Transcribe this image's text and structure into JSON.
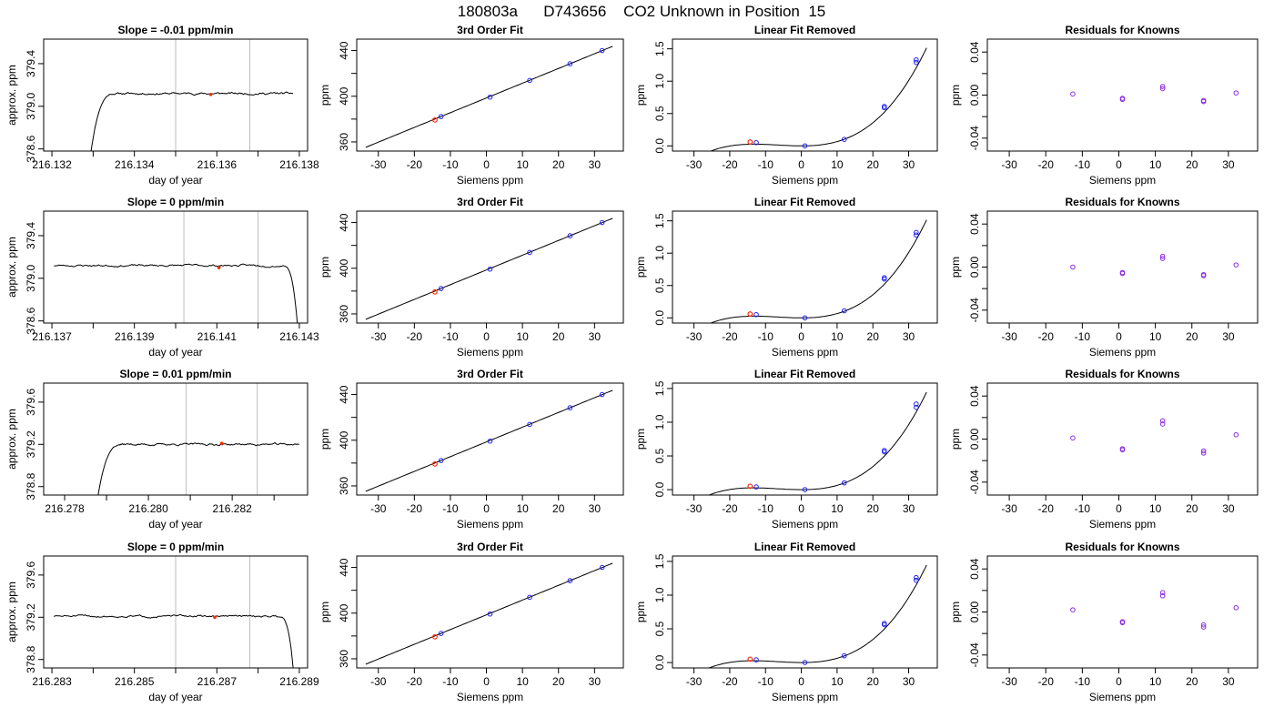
{
  "title": "180803a      D743656    CO2 Unknown in Position  15",
  "colors": {
    "unknown_point": "#ff2a00",
    "known_point": "#1f1fff",
    "residual_point": "#8a2be2",
    "fit_line": "#000000",
    "frame": "#000000",
    "guide_line": "#bdbdbd"
  },
  "chart_data": [
    {
      "type": "line",
      "row": 0,
      "col": 0,
      "title": "Slope =  -0.01  ppm/min",
      "xlabel": "day of year",
      "ylabel": "approx. ppm",
      "xlim": [
        216.1318,
        216.1382
      ],
      "ylim": [
        378.58,
        379.63
      ],
      "xticks": [
        216.132,
        216.133,
        216.134,
        216.135,
        216.136,
        216.137,
        216.138
      ],
      "xtick_labels": [
        "216.132",
        "",
        "216.134",
        "",
        "216.136",
        "",
        "216.138"
      ],
      "yticks": [
        378.6,
        379.0,
        379.4
      ],
      "ytick_labels": [
        "378.6",
        "379.0",
        "379.4"
      ],
      "x_decimals": 3,
      "guides": [
        216.135,
        216.1368
      ],
      "marker": {
        "x": 216.13585,
        "y": 379.11
      },
      "trace": {
        "x_start": 216.13295,
        "x_end": 216.13785,
        "shape": "rise",
        "level": 379.12,
        "start": 378.58,
        "rise_width": 0.0006,
        "noise": 0.012,
        "seed": 11
      }
    },
    {
      "type": "line",
      "row": 1,
      "col": 0,
      "title": "Slope =  0  ppm/min",
      "xlabel": "day of year",
      "ylabel": "approx. ppm",
      "xlim": [
        216.1368,
        216.1432
      ],
      "ylim": [
        378.58,
        379.63
      ],
      "xticks": [
        216.137,
        216.138,
        216.139,
        216.14,
        216.141,
        216.142,
        216.143
      ],
      "xtick_labels": [
        "216.137",
        "",
        "216.139",
        "",
        "216.141",
        "",
        "216.143"
      ],
      "yticks": [
        378.6,
        379.0,
        379.4
      ],
      "ytick_labels": [
        "378.6",
        "379.0",
        "379.4"
      ],
      "x_decimals": 3,
      "guides": [
        216.1402,
        216.142
      ],
      "marker": {
        "x": 216.14105,
        "y": 379.1
      },
      "trace": {
        "x_start": 216.13705,
        "x_end": 216.14295,
        "shape": "drop",
        "level": 379.12,
        "end": 378.58,
        "drop_width": 0.00035,
        "noise": 0.012,
        "seed": 23
      }
    },
    {
      "type": "line",
      "row": 2,
      "col": 0,
      "title": "Slope =  0.01  ppm/min",
      "xlabel": "day of year",
      "ylabel": "approx. ppm",
      "xlim": [
        216.2775,
        216.2838
      ],
      "ylim": [
        378.72,
        379.78
      ],
      "xticks": [
        216.278,
        216.279,
        216.28,
        216.281,
        216.282,
        216.283
      ],
      "xtick_labels": [
        "216.278",
        "",
        "216.280",
        "",
        "216.282",
        ""
      ],
      "yticks": [
        378.8,
        379.2,
        379.6
      ],
      "ytick_labels": [
        "378.8",
        "379.2",
        "379.6"
      ],
      "x_decimals": 3,
      "guides": [
        216.2809,
        216.2826
      ],
      "marker": {
        "x": 216.28175,
        "y": 379.21
      },
      "trace": {
        "x_start": 216.2788,
        "x_end": 216.2836,
        "shape": "rise",
        "level": 379.2,
        "start": 378.72,
        "rise_width": 0.0006,
        "noise": 0.012,
        "seed": 37
      }
    },
    {
      "type": "line",
      "row": 3,
      "col": 0,
      "title": "Slope =  0  ppm/min",
      "xlabel": "day of year",
      "ylabel": "approx. ppm",
      "xlim": [
        216.2828,
        216.2892
      ],
      "ylim": [
        378.72,
        379.78
      ],
      "xticks": [
        216.283,
        216.284,
        216.285,
        216.286,
        216.287,
        216.288,
        216.289
      ],
      "xtick_labels": [
        "216.283",
        "",
        "216.285",
        "",
        "216.287",
        "",
        "216.289"
      ],
      "yticks": [
        378.8,
        379.2,
        379.6
      ],
      "ytick_labels": [
        "378.8",
        "379.2",
        "379.6"
      ],
      "x_decimals": 3,
      "guides": [
        216.286,
        216.2878
      ],
      "marker": {
        "x": 216.28695,
        "y": 379.2
      },
      "trace": {
        "x_start": 216.28305,
        "x_end": 216.28885,
        "shape": "drop",
        "level": 379.21,
        "end": 378.72,
        "drop_width": 0.00035,
        "noise": 0.012,
        "seed": 51
      }
    },
    {
      "type": "scatter",
      "row": 0,
      "col": 1,
      "title": "3rd Order Fit",
      "xlabel": "Siemens ppm",
      "ylabel": "ppm",
      "xlim": [
        -36,
        38
      ],
      "ylim": [
        352,
        450
      ],
      "xticks": [
        -30,
        -20,
        -10,
        0,
        10,
        20,
        30
      ],
      "xtick_labels": [
        "-30",
        "-20",
        "-10",
        "0",
        "10",
        "20",
        "30"
      ],
      "yticks": [
        360,
        380,
        400,
        420,
        440
      ],
      "ytick_labels": [
        "360",
        "",
        "400",
        "",
        "440"
      ],
      "fit": {
        "kind": "linear",
        "a": 398.5,
        "b": 1.29,
        "x_range": [
          -33.5,
          35
        ]
      },
      "known": [
        [
          -12.6,
          382.2
        ],
        [
          1.0,
          399.2
        ],
        [
          12.0,
          413.8
        ],
        [
          23.2,
          428.4
        ],
        [
          32.1,
          440.0
        ]
      ],
      "unknown": [
        [
          -14.3,
          379.2
        ]
      ]
    },
    {
      "type": "scatter",
      "row": 1,
      "col": 1,
      "title": "3rd Order Fit",
      "xlabel": "Siemens ppm",
      "ylabel": "ppm",
      "xlim": [
        -36,
        38
      ],
      "ylim": [
        352,
        450
      ],
      "xticks": [
        -30,
        -20,
        -10,
        0,
        10,
        20,
        30
      ],
      "xtick_labels": [
        "-30",
        "-20",
        "-10",
        "0",
        "10",
        "20",
        "30"
      ],
      "yticks": [
        360,
        380,
        400,
        420,
        440
      ],
      "ytick_labels": [
        "360",
        "",
        "400",
        "",
        "440"
      ],
      "fit": {
        "kind": "linear",
        "a": 398.5,
        "b": 1.29,
        "x_range": [
          -33.5,
          35
        ]
      },
      "known": [
        [
          -12.6,
          382.2
        ],
        [
          1.0,
          399.2
        ],
        [
          12.0,
          413.8
        ],
        [
          23.2,
          428.4
        ],
        [
          32.1,
          440.0
        ]
      ],
      "unknown": [
        [
          -14.3,
          379.2
        ]
      ]
    },
    {
      "type": "scatter",
      "row": 2,
      "col": 1,
      "title": "3rd Order Fit",
      "xlabel": "Siemens ppm",
      "ylabel": "ppm",
      "xlim": [
        -36,
        38
      ],
      "ylim": [
        352,
        450
      ],
      "xticks": [
        -30,
        -20,
        -10,
        0,
        10,
        20,
        30
      ],
      "xtick_labels": [
        "-30",
        "-20",
        "-10",
        "0",
        "10",
        "20",
        "30"
      ],
      "yticks": [
        360,
        380,
        400,
        420,
        440
      ],
      "ytick_labels": [
        "360",
        "",
        "400",
        "",
        "440"
      ],
      "fit": {
        "kind": "linear",
        "a": 398.5,
        "b": 1.29,
        "x_range": [
          -33.5,
          35
        ]
      },
      "known": [
        [
          -12.6,
          382.2
        ],
        [
          1.0,
          399.2
        ],
        [
          12.0,
          413.8
        ],
        [
          23.2,
          428.4
        ],
        [
          32.1,
          440.0
        ]
      ],
      "unknown": [
        [
          -14.3,
          379.2
        ]
      ]
    },
    {
      "type": "scatter",
      "row": 3,
      "col": 1,
      "title": "3rd Order Fit",
      "xlabel": "Siemens ppm",
      "ylabel": "ppm",
      "xlim": [
        -36,
        38
      ],
      "ylim": [
        352,
        450
      ],
      "xticks": [
        -30,
        -20,
        -10,
        0,
        10,
        20,
        30
      ],
      "xtick_labels": [
        "-30",
        "-20",
        "-10",
        "0",
        "10",
        "20",
        "30"
      ],
      "yticks": [
        360,
        380,
        400,
        420,
        440
      ],
      "ytick_labels": [
        "360",
        "",
        "400",
        "",
        "440"
      ],
      "fit": {
        "kind": "linear",
        "a": 398.5,
        "b": 1.29,
        "x_range": [
          -33.5,
          35
        ]
      },
      "known": [
        [
          -12.6,
          382.2
        ],
        [
          1.0,
          399.2
        ],
        [
          12.0,
          413.8
        ],
        [
          23.2,
          428.4
        ],
        [
          32.1,
          440.0
        ]
      ],
      "unknown": [
        [
          -14.3,
          379.2
        ]
      ]
    },
    {
      "type": "scatter",
      "row": 0,
      "col": 2,
      "title": "Linear Fit Removed",
      "xlabel": "Siemens ppm",
      "ylabel": "ppm",
      "xlim": [
        -36,
        38
      ],
      "ylim": [
        -0.08,
        1.65
      ],
      "xticks": [
        -30,
        -20,
        -10,
        0,
        10,
        20,
        30
      ],
      "xtick_labels": [
        "-30",
        "-20",
        "-10",
        "0",
        "10",
        "20",
        "30"
      ],
      "yticks": [
        0,
        0.5,
        1.0,
        1.5
      ],
      "ytick_labels": [
        "0.0",
        "0.5",
        "1.0",
        "1.5"
      ],
      "fit": {
        "kind": "cubic",
        "x_range": [
          -33.5,
          35
        ],
        "c": [
          0,
          -0.0001,
          0.000445,
          2.27e-05
        ]
      },
      "known": [
        [
          -12.6,
          0.05
        ],
        [
          1.0,
          0.0
        ],
        [
          12.0,
          0.1
        ],
        [
          23.2,
          0.59
        ],
        [
          23.2,
          0.61
        ],
        [
          32.1,
          1.29
        ],
        [
          32.1,
          1.33
        ]
      ],
      "unknown": [
        [
          -14.3,
          0.06
        ]
      ]
    },
    {
      "type": "scatter",
      "row": 1,
      "col": 2,
      "title": "Linear Fit Removed",
      "xlabel": "Siemens ppm",
      "ylabel": "ppm",
      "xlim": [
        -36,
        38
      ],
      "ylim": [
        -0.08,
        1.65
      ],
      "xticks": [
        -30,
        -20,
        -10,
        0,
        10,
        20,
        30
      ],
      "xtick_labels": [
        "-30",
        "-20",
        "-10",
        "0",
        "10",
        "20",
        "30"
      ],
      "yticks": [
        0,
        0.5,
        1.0,
        1.5
      ],
      "ytick_labels": [
        "0.0",
        "0.5",
        "1.0",
        "1.5"
      ],
      "fit": {
        "kind": "cubic",
        "x_range": [
          -33.5,
          35
        ],
        "c": [
          0,
          -0.0001,
          0.000445,
          2.27e-05
        ]
      },
      "known": [
        [
          -12.6,
          0.05
        ],
        [
          1.0,
          0.0
        ],
        [
          12.0,
          0.11
        ],
        [
          23.2,
          0.6
        ],
        [
          23.2,
          0.62
        ],
        [
          32.1,
          1.28
        ],
        [
          32.1,
          1.32
        ]
      ],
      "unknown": [
        [
          -14.3,
          0.06
        ]
      ]
    },
    {
      "type": "scatter",
      "row": 2,
      "col": 2,
      "title": "Linear Fit Removed",
      "xlabel": "Siemens ppm",
      "ylabel": "ppm",
      "xlim": [
        -36,
        38
      ],
      "ylim": [
        -0.08,
        1.58
      ],
      "xticks": [
        -30,
        -20,
        -10,
        0,
        10,
        20,
        30
      ],
      "xtick_labels": [
        "-30",
        "-20",
        "-10",
        "0",
        "10",
        "20",
        "30"
      ],
      "yticks": [
        0,
        0.5,
        1.0,
        1.5
      ],
      "ytick_labels": [
        "0.0",
        "0.5",
        "1.0",
        "1.5"
      ],
      "fit": {
        "kind": "cubic",
        "x_range": [
          -33.5,
          35
        ],
        "c": [
          0,
          -0.0001,
          0.00043,
          2.15e-05
        ]
      },
      "known": [
        [
          -12.6,
          0.04
        ],
        [
          1.0,
          0.0
        ],
        [
          12.0,
          0.1
        ],
        [
          23.2,
          0.56
        ],
        [
          23.2,
          0.58
        ],
        [
          32.1,
          1.22
        ],
        [
          32.1,
          1.27
        ]
      ],
      "unknown": [
        [
          -14.3,
          0.05
        ]
      ]
    },
    {
      "type": "scatter",
      "row": 3,
      "col": 2,
      "title": "Linear Fit Removed",
      "xlabel": "Siemens ppm",
      "ylabel": "ppm",
      "xlim": [
        -36,
        38
      ],
      "ylim": [
        -0.08,
        1.58
      ],
      "xticks": [
        -30,
        -20,
        -10,
        0,
        10,
        20,
        30
      ],
      "xtick_labels": [
        "-30",
        "-20",
        "-10",
        "0",
        "10",
        "20",
        "30"
      ],
      "yticks": [
        0,
        0.5,
        1.0,
        1.5
      ],
      "ytick_labels": [
        "0.0",
        "0.5",
        "1.0",
        "1.5"
      ],
      "fit": {
        "kind": "cubic",
        "x_range": [
          -33.5,
          35
        ],
        "c": [
          0,
          -0.0001,
          0.00043,
          2.15e-05
        ]
      },
      "known": [
        [
          -12.6,
          0.04
        ],
        [
          1.0,
          0.0
        ],
        [
          12.0,
          0.1
        ],
        [
          23.2,
          0.56
        ],
        [
          23.2,
          0.58
        ],
        [
          32.1,
          1.22
        ],
        [
          32.1,
          1.26
        ]
      ],
      "unknown": [
        [
          -14.3,
          0.05
        ]
      ]
    },
    {
      "type": "scatter",
      "row": 0,
      "col": 3,
      "title": "Residuals for Knowns",
      "xlabel": "Siemens ppm",
      "ylabel": "ppm",
      "xlim": [
        -36,
        38
      ],
      "ylim": [
        -0.052,
        0.052
      ],
      "xticks": [
        -30,
        -20,
        -10,
        0,
        10,
        20,
        30
      ],
      "xtick_labels": [
        "-30",
        "-20",
        "-10",
        "0",
        "10",
        "20",
        "30"
      ],
      "yticks": [
        -0.04,
        -0.02,
        0,
        0.02,
        0.04
      ],
      "ytick_labels": [
        "-0.04",
        "",
        "0.00",
        "",
        "0.04"
      ],
      "residuals": [
        [
          -12.6,
          0.001
        ],
        [
          1.0,
          -0.003
        ],
        [
          1.0,
          -0.004
        ],
        [
          12.0,
          0.008
        ],
        [
          12.0,
          0.006
        ],
        [
          23.2,
          -0.005
        ],
        [
          23.2,
          -0.006
        ],
        [
          32.1,
          0.002
        ]
      ]
    },
    {
      "type": "scatter",
      "row": 1,
      "col": 3,
      "title": "Residuals for Knowns",
      "xlabel": "Siemens ppm",
      "ylabel": "ppm",
      "xlim": [
        -36,
        38
      ],
      "ylim": [
        -0.052,
        0.052
      ],
      "xticks": [
        -30,
        -20,
        -10,
        0,
        10,
        20,
        30
      ],
      "xtick_labels": [
        "-30",
        "-20",
        "-10",
        "0",
        "10",
        "20",
        "30"
      ],
      "yticks": [
        -0.04,
        -0.02,
        0,
        0.02,
        0.04
      ],
      "ytick_labels": [
        "-0.04",
        "",
        "0.00",
        "",
        "0.04"
      ],
      "residuals": [
        [
          -12.6,
          0.0
        ],
        [
          1.0,
          -0.005
        ],
        [
          1.0,
          -0.006
        ],
        [
          12.0,
          0.01
        ],
        [
          12.0,
          0.008
        ],
        [
          23.2,
          -0.007
        ],
        [
          23.2,
          -0.008
        ],
        [
          32.1,
          0.002
        ]
      ]
    },
    {
      "type": "scatter",
      "row": 2,
      "col": 3,
      "title": "Residuals for Knowns",
      "xlabel": "Siemens ppm",
      "ylabel": "ppm",
      "xlim": [
        -36,
        38
      ],
      "ylim": [
        -0.052,
        0.052
      ],
      "xticks": [
        -30,
        -20,
        -10,
        0,
        10,
        20,
        30
      ],
      "xtick_labels": [
        "-30",
        "-20",
        "-10",
        "0",
        "10",
        "20",
        "30"
      ],
      "yticks": [
        -0.04,
        -0.02,
        0,
        0.02,
        0.04
      ],
      "ytick_labels": [
        "-0.04",
        "",
        "0.00",
        "",
        "0.04"
      ],
      "residuals": [
        [
          -12.6,
          0.001
        ],
        [
          1.0,
          -0.009
        ],
        [
          1.0,
          -0.01
        ],
        [
          12.0,
          0.017
        ],
        [
          12.0,
          0.014
        ],
        [
          23.2,
          -0.011
        ],
        [
          23.2,
          -0.013
        ],
        [
          32.1,
          0.004
        ]
      ]
    },
    {
      "type": "scatter",
      "row": 3,
      "col": 3,
      "title": "Residuals for Knowns",
      "xlabel": "Siemens ppm",
      "ylabel": "ppm",
      "xlim": [
        -36,
        38
      ],
      "ylim": [
        -0.052,
        0.052
      ],
      "xticks": [
        -30,
        -20,
        -10,
        0,
        10,
        20,
        30
      ],
      "xtick_labels": [
        "-30",
        "-20",
        "-10",
        "0",
        "10",
        "20",
        "30"
      ],
      "yticks": [
        -0.04,
        -0.02,
        0,
        0.02,
        0.04
      ],
      "ytick_labels": [
        "-0.04",
        "",
        "0.00",
        "",
        "0.04"
      ],
      "residuals": [
        [
          -12.6,
          0.002
        ],
        [
          1.0,
          -0.009
        ],
        [
          1.0,
          -0.01
        ],
        [
          12.0,
          0.018
        ],
        [
          12.0,
          0.015
        ],
        [
          23.2,
          -0.012
        ],
        [
          23.2,
          -0.014
        ],
        [
          32.1,
          0.004
        ]
      ]
    }
  ]
}
